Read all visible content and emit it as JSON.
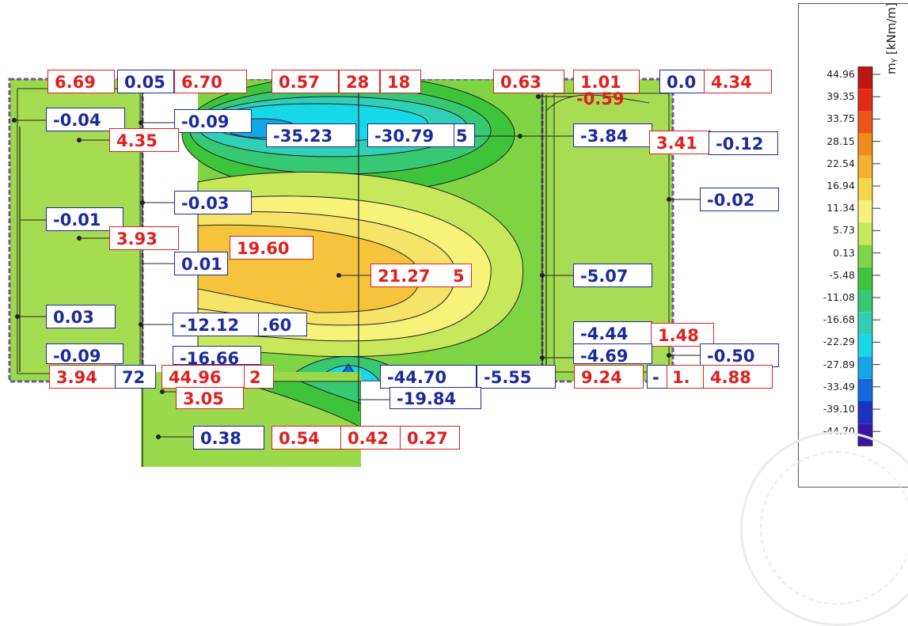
{
  "legend": {
    "title": "mᵧ [kNm/m]",
    "ticks": [
      "44.96",
      "39.35",
      "33.75",
      "28.15",
      "22.54",
      "16.94",
      "11.34",
      "5.73",
      "0.13",
      "-5.48",
      "-11.08",
      "-16.68",
      "-22.29",
      "-27.89",
      "-33.49",
      "-39.10",
      "-44.70"
    ],
    "colors": [
      "#c0140f",
      "#e02a16",
      "#ee5418",
      "#f08c1c",
      "#f5b030",
      "#f6d64a",
      "#f6f27a",
      "#c6e85a",
      "#7ed442",
      "#3ec43a",
      "#36c872",
      "#30d0b6",
      "#18d8e8",
      "#12a8e6",
      "#1468dc",
      "#1c32c0",
      "#3a14a6"
    ]
  },
  "value_labels": [
    {
      "text": "6.69",
      "sign": "pos"
    },
    {
      "text": "0.05",
      "sign": "neg"
    },
    {
      "text": "6.70",
      "sign": "pos"
    },
    {
      "text": "0.57",
      "sign": "pos"
    },
    {
      "text": "28",
      "sign": "pos"
    },
    {
      "text": "18",
      "sign": "pos"
    },
    {
      "text": "0.63",
      "sign": "pos"
    },
    {
      "text": "1.01",
      "sign": "pos"
    },
    {
      "text": "0.0",
      "sign": "neg"
    },
    {
      "text": "4.34",
      "sign": "pos"
    },
    {
      "text": "-0.59",
      "sign": "pos"
    },
    {
      "text": "-0.04",
      "sign": "neg"
    },
    {
      "text": "-0.09",
      "sign": "neg"
    },
    {
      "text": "-35.23",
      "sign": "neg"
    },
    {
      "text": "-30.79",
      "sign": "neg"
    },
    {
      "text": "5",
      "sign": "neg"
    },
    {
      "text": "-3.84",
      "sign": "neg"
    },
    {
      "text": "3.41",
      "sign": "pos"
    },
    {
      "text": "-0.12",
      "sign": "neg"
    },
    {
      "text": "4.35",
      "sign": "pos"
    },
    {
      "text": "-0.03",
      "sign": "neg"
    },
    {
      "text": "-0.02",
      "sign": "neg"
    },
    {
      "text": "-0.01",
      "sign": "neg"
    },
    {
      "text": "3.93",
      "sign": "pos"
    },
    {
      "text": "19.60",
      "sign": "pos"
    },
    {
      "text": "0.01",
      "sign": "neg"
    },
    {
      "text": "21.27",
      "sign": "pos"
    },
    {
      "text": "5",
      "sign": "pos"
    },
    {
      "text": "-5.07",
      "sign": "neg"
    },
    {
      "text": "0.03",
      "sign": "neg"
    },
    {
      "text": "-12.12",
      "sign": "neg"
    },
    {
      "text": ".60",
      "sign": "neg"
    },
    {
      "text": "-4.44",
      "sign": "neg"
    },
    {
      "text": "1.48",
      "sign": "pos"
    },
    {
      "text": "-0.09",
      "sign": "neg"
    },
    {
      "text": "-16.66",
      "sign": "neg"
    },
    {
      "text": "-4.69",
      "sign": "neg"
    },
    {
      "text": "-0.50",
      "sign": "neg"
    },
    {
      "text": "3.94",
      "sign": "pos"
    },
    {
      "text": "72",
      "sign": "neg"
    },
    {
      "text": "44.96",
      "sign": "pos"
    },
    {
      "text": "2",
      "sign": "pos"
    },
    {
      "text": "-44.70",
      "sign": "neg"
    },
    {
      "text": "-5.55",
      "sign": "neg"
    },
    {
      "text": "9.24",
      "sign": "pos"
    },
    {
      "text": "-",
      "sign": "neg"
    },
    {
      "text": "1.",
      "sign": "pos"
    },
    {
      "text": "4.88",
      "sign": "pos"
    },
    {
      "text": "3.05",
      "sign": "pos"
    },
    {
      "text": "-19.84",
      "sign": "neg"
    },
    {
      "text": "0.38",
      "sign": "neg"
    },
    {
      "text": "0.54",
      "sign": "pos"
    },
    {
      "text": "0.42",
      "sign": "pos"
    },
    {
      "text": "0.27",
      "sign": "pos"
    }
  ]
}
